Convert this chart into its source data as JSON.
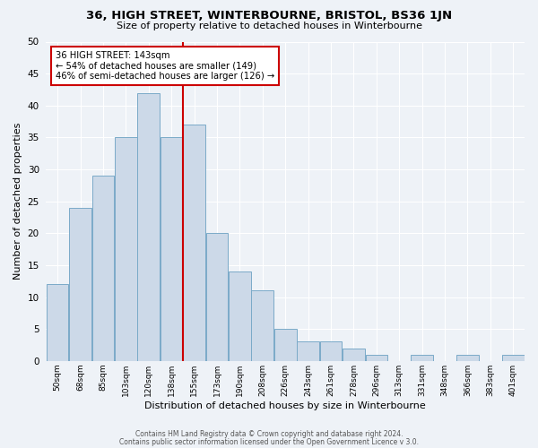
{
  "title": "36, HIGH STREET, WINTERBOURNE, BRISTOL, BS36 1JN",
  "subtitle": "Size of property relative to detached houses in Winterbourne",
  "xlabel": "Distribution of detached houses by size in Winterbourne",
  "ylabel": "Number of detached properties",
  "bar_labels": [
    "50sqm",
    "68sqm",
    "85sqm",
    "103sqm",
    "120sqm",
    "138sqm",
    "155sqm",
    "173sqm",
    "190sqm",
    "208sqm",
    "226sqm",
    "243sqm",
    "261sqm",
    "278sqm",
    "296sqm",
    "313sqm",
    "331sqm",
    "348sqm",
    "366sqm",
    "383sqm",
    "401sqm"
  ],
  "bar_values": [
    12,
    24,
    29,
    35,
    42,
    35,
    37,
    20,
    14,
    11,
    5,
    3,
    3,
    2,
    1,
    0,
    1,
    0,
    1,
    0,
    1
  ],
  "bar_color": "#ccd9e8",
  "bar_edge_color": "#7aaac8",
  "vline_x": 5.5,
  "vline_color": "#cc0000",
  "annotation_title": "36 HIGH STREET: 143sqm",
  "annotation_line1": "← 54% of detached houses are smaller (149)",
  "annotation_line2": "46% of semi-detached houses are larger (126) →",
  "annotation_box_edge": "#cc0000",
  "ylim": [
    0,
    50
  ],
  "yticks": [
    0,
    5,
    10,
    15,
    20,
    25,
    30,
    35,
    40,
    45,
    50
  ],
  "background_color": "#eef2f7",
  "grid_color": "#ffffff",
  "footer1": "Contains HM Land Registry data © Crown copyright and database right 2024.",
  "footer2": "Contains public sector information licensed under the Open Government Licence v 3.0."
}
